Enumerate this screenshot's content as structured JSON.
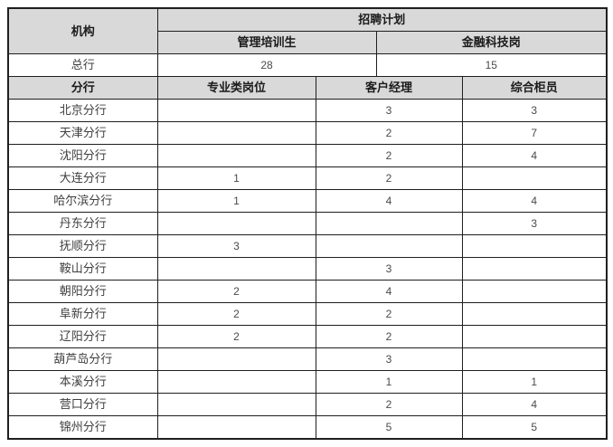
{
  "table": {
    "org_header": "机构",
    "plan_header": "招聘计划",
    "plan_columns": [
      "管理培训生",
      "金融科技岗"
    ],
    "head_office_row": {
      "name": "总行",
      "values": [
        "28",
        "15"
      ]
    },
    "branch_section": {
      "header": "分行",
      "columns": [
        "专业类岗位",
        "客户经理",
        "综合柜员"
      ]
    },
    "branches": [
      {
        "name": "北京分行",
        "values": [
          "",
          "3",
          "3"
        ]
      },
      {
        "name": "天津分行",
        "values": [
          "",
          "2",
          "7"
        ]
      },
      {
        "name": "沈阳分行",
        "values": [
          "",
          "2",
          "4"
        ]
      },
      {
        "name": "大连分行",
        "values": [
          "1",
          "2",
          ""
        ]
      },
      {
        "name": "哈尔滨分行",
        "values": [
          "1",
          "4",
          "4"
        ]
      },
      {
        "name": "丹东分行",
        "values": [
          "",
          "",
          "3"
        ]
      },
      {
        "name": "抚顺分行",
        "values": [
          "3",
          "",
          ""
        ]
      },
      {
        "name": "鞍山分行",
        "values": [
          "",
          "3",
          ""
        ]
      },
      {
        "name": "朝阳分行",
        "values": [
          "2",
          "4",
          ""
        ]
      },
      {
        "name": "阜新分行",
        "values": [
          "2",
          "2",
          ""
        ]
      },
      {
        "name": "辽阳分行",
        "values": [
          "2",
          "2",
          ""
        ]
      },
      {
        "name": "葫芦岛分行",
        "values": [
          "",
          "3",
          ""
        ]
      },
      {
        "name": "本溪分行",
        "values": [
          "",
          "1",
          "1"
        ]
      },
      {
        "name": "营口分行",
        "values": [
          "",
          "2",
          "4"
        ]
      },
      {
        "name": "锦州分行",
        "values": [
          "",
          "5",
          "5"
        ]
      }
    ]
  },
  "colors": {
    "header_bg": "#d9d9d9",
    "border": "#1f1f1f",
    "header_text": "#1a1a1a",
    "body_text": "#3f3f3f",
    "page_bg": "#ffffff"
  }
}
